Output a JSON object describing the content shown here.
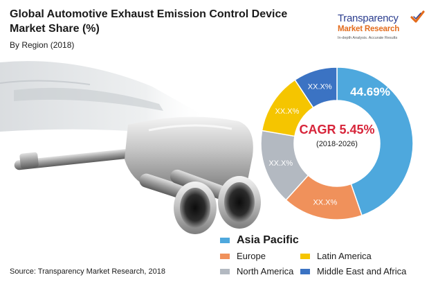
{
  "header": {
    "title": "Global Automotive Exhaust Emission Control Device Market Share (%)",
    "subtitle": "By Region (2018)"
  },
  "logo": {
    "brand_line1": "Transparency",
    "brand_line2": "Market Research",
    "tagline": "In-depth Analysis. Accurate Results",
    "icon": "checkmark-icon",
    "colors": {
      "blue": "#2c3e8f",
      "orange": "#e36c1d"
    }
  },
  "chart_data": {
    "type": "pie",
    "variant": "donut",
    "categories": [
      "Asia Pacific",
      "Europe",
      "North America",
      "Latin America",
      "Middle East and Africa"
    ],
    "values": [
      44.69,
      17,
      16,
      13,
      9.31
    ],
    "data_labels": [
      "44.69%",
      "XX.X%",
      "XX.X%",
      "XX.X%",
      "XX.X%"
    ],
    "colors": [
      "#4ea8dd",
      "#f0915b",
      "#b3b9c1",
      "#f5c500",
      "#3b73c3"
    ],
    "center_label": {
      "main": "CAGR 5.45%",
      "sub": "(2018-2026)",
      "main_color": "#d7253a"
    },
    "legend_position": "bottom-right"
  },
  "legend": {
    "items": [
      {
        "label": "Asia Pacific",
        "color": "#4ea8dd"
      },
      {
        "label": "Europe",
        "color": "#f0915b"
      },
      {
        "label": "Latin America",
        "color": "#f5c500"
      },
      {
        "label": "North America",
        "color": "#b3b9c1"
      },
      {
        "label": "Middle East and Africa",
        "color": "#3b73c3"
      }
    ]
  },
  "footer": {
    "source": "Source: Transparency Market Research, 2018"
  }
}
